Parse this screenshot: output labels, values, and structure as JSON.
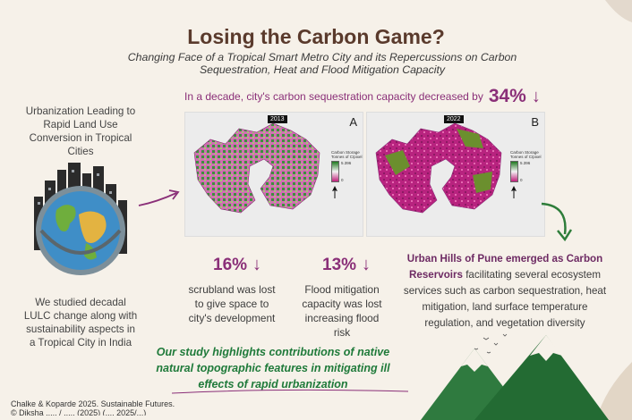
{
  "header": {
    "title": "Losing the Carbon Game?",
    "subtitle": "Changing Face of a Tropical Smart Metro City and its Repercussions on Carbon Sequestration, Heat and Flood Mitigation Capacity"
  },
  "carbon_stat": {
    "text": "In a decade, city's carbon sequestration capacity decreased by",
    "value": "34%",
    "arrow": "↓"
  },
  "left": {
    "top_text": "Urbanization Leading to Rapid Land Use Conversion in Tropical Cities",
    "bottom_text": "We studied decadal LULC change along with sustainability aspects in a Tropical City in India"
  },
  "maps": [
    {
      "year": "2013",
      "letter": "A",
      "legend_title": "Carbon Storage Tonnes of C/pixel",
      "legend_high": "5.396",
      "legend_low": "0"
    },
    {
      "year": "2022",
      "letter": "B",
      "legend_title": "Carbon Storage Tonnes of C/pixel",
      "legend_high": "5.396",
      "legend_low": "0"
    }
  ],
  "stats": [
    {
      "value": "16%",
      "arrow": "↓",
      "text": "scrubland was lost to give space to city's development"
    },
    {
      "value": "13%",
      "arrow": "↓",
      "text": "Flood mitigation capacity was lost increasing flood risk"
    }
  ],
  "pune": {
    "bold": "Urban Hills of Pune emerged as Carbon Reservoirs",
    "rest": "facilitating several ecosystem services such as carbon sequestration, heat mitigation, land surface temperature regulation, and vegetation diversity"
  },
  "highlight": "Our study highlights contributions of native natural topographic features in mitigating ill effects of rapid urbanization",
  "citation": {
    "line1": "Chalke & Koparde 2025. Sustainable Futures.",
    "line2": "© Diksha ..... / ..... (2025) (.... 2025/...)"
  },
  "colors": {
    "accent": "#8a2f78",
    "green": "#1f7a3a",
    "title": "#5a3a2c",
    "background": "#f6f1e9"
  }
}
